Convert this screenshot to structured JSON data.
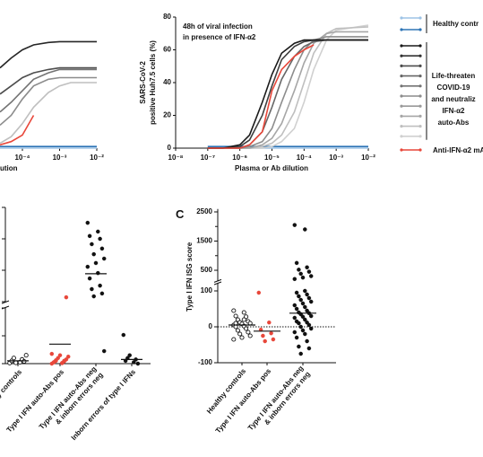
{
  "chart_data": [
    {
      "type": "line",
      "xlog": true,
      "x": [
        2.5e-05,
        5e-05,
        0.0001,
        0.0002,
        0.0005,
        0.001,
        0.002,
        0.005,
        0.01
      ],
      "xlim": [
        2.5e-05,
        0.01
      ],
      "ylim": [
        0,
        80
      ],
      "xticks": [
        {
          "value": 0.0001,
          "label": "10⁻⁴"
        },
        {
          "value": 0.001,
          "label": "10⁻³"
        },
        {
          "value": 0.01,
          "label": "10⁻²"
        }
      ],
      "xlabel": "ution",
      "series": [
        {
          "color": "#9dc3e6",
          "values": [
            0,
            0,
            0,
            0,
            0,
            0,
            0,
            0,
            0
          ]
        },
        {
          "color": "#2e75b6",
          "values": [
            1,
            1,
            1,
            1,
            1,
            1,
            1,
            1,
            1
          ]
        },
        {
          "color": "#bfbfbf",
          "values": [
            3,
            7,
            15,
            25,
            34,
            38,
            40,
            40,
            40
          ]
        },
        {
          "color": "#8c8c8c",
          "values": [
            14,
            20,
            30,
            38,
            42,
            43,
            43,
            43,
            43
          ]
        },
        {
          "color": "#737373",
          "values": [
            22,
            28,
            35,
            42,
            46,
            48,
            48,
            48,
            48
          ]
        },
        {
          "color": "#4d4d4d",
          "values": [
            33,
            38,
            43,
            46,
            48,
            49,
            49,
            49,
            49
          ]
        },
        {
          "color": "#262626",
          "values": [
            49,
            55,
            60,
            63,
            64.5,
            65,
            65,
            65,
            65
          ]
        },
        {
          "color": "#e8473a",
          "values": [
            2,
            4,
            8,
            20,
            null,
            null,
            null,
            null,
            null
          ]
        }
      ]
    },
    {
      "type": "line",
      "xlog": true,
      "x": [
        1e-07,
        3e-07,
        1e-06,
        2e-06,
        5e-06,
        1e-05,
        2e-05,
        5e-05,
        0.0001,
        0.0002,
        0.0005,
        0.001,
        0.01
      ],
      "xlim": [
        1e-08,
        0.01
      ],
      "ylim": [
        0,
        80
      ],
      "yticks": [
        0,
        20,
        40,
        60,
        80
      ],
      "xticks": [
        {
          "value": 1e-08,
          "label": "10⁻⁸"
        },
        {
          "value": 1e-07,
          "label": "10⁻⁷"
        },
        {
          "value": 1e-06,
          "label": "10⁻⁶"
        },
        {
          "value": 1e-05,
          "label": "10⁻⁵"
        },
        {
          "value": 0.0001,
          "label": "10⁻⁴"
        },
        {
          "value": 0.001,
          "label": "10⁻³"
        },
        {
          "value": 0.01,
          "label": "10⁻²"
        }
      ],
      "xlabel": "Plasma or Ab dilution",
      "ylabel": [
        "SARS-CoV-2",
        "positive Huh7.5 cells (%)"
      ],
      "annotation": [
        "48h of viral infection",
        "in presence of IFN-α2"
      ],
      "series": [
        {
          "color": "#9dc3e6",
          "values": [
            0,
            0,
            0,
            0,
            0,
            0,
            0,
            0,
            0,
            0,
            0,
            0,
            0
          ]
        },
        {
          "color": "#2e75b6",
          "values": [
            1,
            1,
            1,
            1,
            1,
            1,
            1,
            1,
            1,
            1,
            1,
            1,
            1
          ]
        },
        {
          "color": "#d0d0d0",
          "values": [
            0,
            0,
            0,
            0,
            0,
            1,
            4,
            12,
            28,
            48,
            66,
            72,
            75
          ]
        },
        {
          "color": "#bfbfbf",
          "values": [
            0,
            0,
            0,
            0,
            1,
            3,
            8,
            22,
            40,
            58,
            70,
            73,
            74
          ]
        },
        {
          "color": "#a6a6a6",
          "values": [
            0,
            0,
            0,
            0,
            2,
            6,
            15,
            35,
            52,
            64,
            70,
            71,
            71
          ]
        },
        {
          "color": "#8c8c8c",
          "values": [
            0,
            0,
            0,
            1,
            4,
            12,
            28,
            48,
            60,
            66,
            68,
            68,
            68
          ]
        },
        {
          "color": "#666666",
          "values": [
            0,
            0,
            0,
            2,
            10,
            25,
            42,
            56,
            62,
            65,
            66,
            66,
            66
          ]
        },
        {
          "color": "#404040",
          "values": [
            0,
            0,
            1,
            5,
            20,
            38,
            54,
            62,
            65,
            66,
            66,
            66,
            66
          ]
        },
        {
          "color": "#1a1a1a",
          "values": [
            0,
            0,
            2,
            8,
            28,
            45,
            58,
            64,
            66,
            66,
            66,
            66,
            66
          ]
        },
        {
          "color": "#e8473a",
          "values": [
            0,
            0,
            0,
            2,
            10,
            35,
            48,
            56,
            60,
            63,
            null,
            null,
            null
          ]
        }
      ],
      "legend": [
        {
          "colors": [
            "#9dc3e6",
            "#2e75b6"
          ],
          "text": [
            "Healthy contr"
          ]
        },
        {
          "colors": [
            "#1a1a1a",
            "#333333",
            "#4d4d4d",
            "#666666",
            "#737373",
            "#8c8c8c",
            "#999999",
            "#a6a6a6",
            "#bfbfbf",
            "#d0d0d0"
          ],
          "text": [
            "Life-threaten",
            "COVID-19",
            "and neutraliz",
            "IFN-α2",
            "auto-Abs"
          ]
        },
        {
          "colors": [
            "#e8473a"
          ],
          "text": [
            "Anti-IFN-α2 mA"
          ]
        }
      ]
    },
    {
      "type": "dot",
      "categories": [
        [
          "hy controls"
        ],
        [
          "Type I IFN auto-Abs pos"
        ],
        [
          "Type I IFN auto-Abs neg",
          "& inborn errors neg"
        ],
        [
          "Inborn errors of type I IFNs"
        ]
      ],
      "colors": [
        "#111111",
        "#e8473a",
        "#111111",
        "#111111"
      ],
      "open": [
        true,
        false,
        false,
        false
      ],
      "values": [
        [
          0.02,
          0.05,
          0.1,
          0.15,
          0.2,
          0.08,
          0.03,
          0.3
        ],
        [
          0,
          0.02,
          0.05,
          0.1,
          0.12,
          0.15,
          0.2,
          0.25,
          0.3,
          0.35,
          0.02,
          0.05,
          0.08,
          0.1,
          11.4
        ],
        [
          35.1,
          32.3,
          30.9,
          30,
          28.3,
          26.9,
          25.1,
          23.7,
          22.3,
          21.1,
          19.1,
          17.4,
          15.1,
          14,
          12.6,
          11.7,
          0.45
        ],
        [
          1.03,
          0.05,
          0.1,
          0.15,
          0.2,
          0,
          0.3
        ]
      ],
      "means": [
        0.1,
        0.7,
        18.9,
        0.15
      ],
      "ylim_lower": [
        0,
        2
      ],
      "yticks_lower": [
        0,
        1,
        2
      ],
      "ylim_upper": [
        10,
        40
      ],
      "yticks_upper": [
        10,
        20,
        30,
        40
      ],
      "tick_labels": false
    },
    {
      "type": "dot",
      "panel_label": "C",
      "categories": [
        [
          "Healthy controls"
        ],
        [
          "Type I IFN auto-Abs pos"
        ],
        [
          "Type I IFN auto-Abs neg",
          "& inborn errors neg"
        ]
      ],
      "colors": [
        "#111111",
        "#e8473a",
        "#111111"
      ],
      "open": [
        true,
        false,
        false
      ],
      "values": [
        [
          45,
          40,
          30,
          28,
          20,
          15,
          12,
          10,
          8,
          5,
          2,
          0,
          -5,
          -10,
          -15,
          -20,
          -25,
          -30,
          -35,
          20,
          10
        ],
        [
          95,
          12,
          -8,
          -18,
          -25,
          -35,
          -40
        ],
        [
          2050,
          1900,
          750,
          600,
          520,
          450,
          380,
          300,
          250,
          200,
          100,
          95,
          90,
          85,
          80,
          75,
          70,
          65,
          60,
          55,
          50,
          45,
          40,
          38,
          35,
          30,
          28,
          25,
          20,
          15,
          12,
          10,
          5,
          0,
          -5,
          -10,
          -15,
          -20,
          -30,
          -40,
          -55,
          -60,
          -75
        ]
      ],
      "means": [
        5,
        -12,
        38
      ],
      "ylim_lower": [
        -100,
        120
      ],
      "yticks_lower": [
        -100,
        0,
        100
      ],
      "ylim_upper": [
        150,
        2600
      ],
      "yticks_upper": [
        500,
        1500,
        2500
      ],
      "minor_yticks_upper": [
        1000,
        2000
      ],
      "tick_labels": true,
      "zero_line": true,
      "ylabel": "Type I IFN ISG score"
    }
  ]
}
